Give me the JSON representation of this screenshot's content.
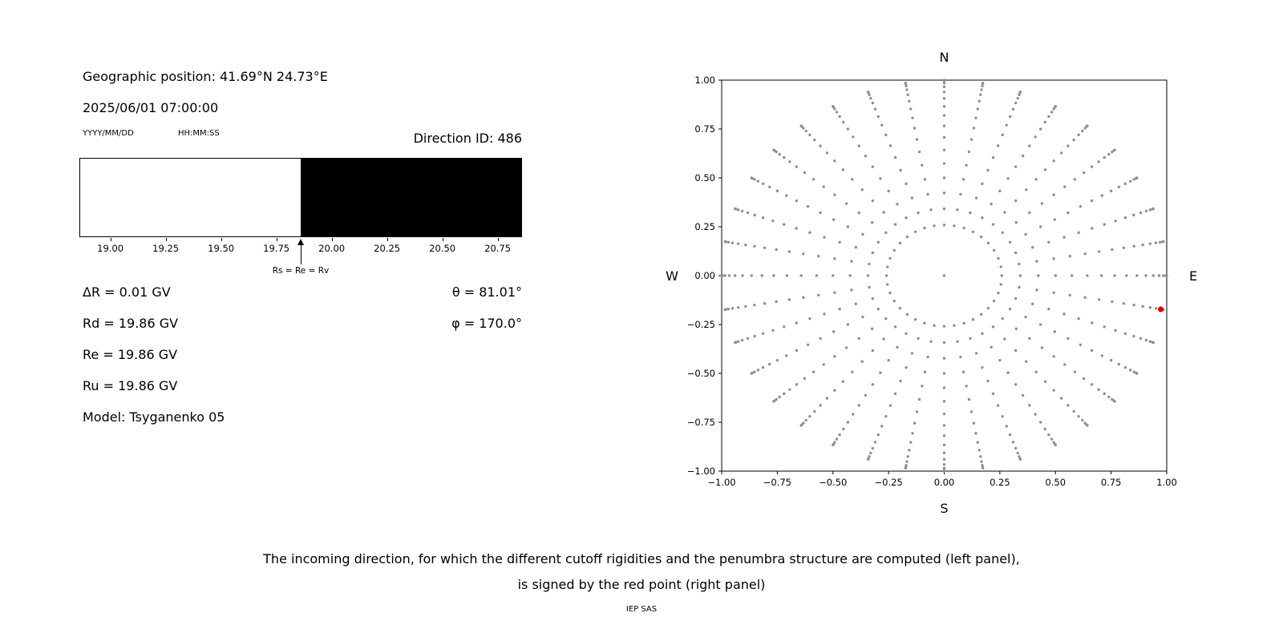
{
  "left_panel": {
    "geo_position": "Geographic position: 41.69°N 24.73°E",
    "datetime": "2025/06/01 07:00:00",
    "date_format": "YYYY/MM/DD",
    "time_format": "HH:MM:SS",
    "direction_id": "Direction ID: 486"
  },
  "rigidities": {
    "delta_r": "ΔR = 0.01 GV",
    "rd": "Rd = 19.86 GV",
    "re": "Re = 19.86 GV",
    "ru": "Ru = 19.86 GV",
    "model": "Model: Tsyganenko 05",
    "theta": "θ = 81.01°",
    "phi": "φ = 170.0°"
  },
  "caption": {
    "line1": "The incoming direction, for which the different cutoff rigidities and the penumbra structure are computed (left panel),",
    "line2": "is signed by the red point (right panel)",
    "credit": "IEP SAS"
  },
  "chart_data": [
    {
      "type": "bar",
      "name": "penumbra-structure",
      "xlabel_unit": "GV",
      "xlim": [
        18.86,
        20.86
      ],
      "x_ticks": [
        19.0,
        19.25,
        19.5,
        19.75,
        20.0,
        20.25,
        20.5,
        20.75
      ],
      "boundary_rigidity": 19.86,
      "allowed_color": "#ffffff",
      "forbidden_color": "#000000",
      "annotation": "Rs = Re = Rv"
    },
    {
      "type": "scatter",
      "name": "incoming-directions-sky-map",
      "xlim": [
        -1,
        1
      ],
      "ylim": [
        -1,
        1
      ],
      "x_ticks": [
        -1.0,
        -0.75,
        -0.5,
        -0.25,
        0.0,
        0.25,
        0.5,
        0.75,
        1.0
      ],
      "y_ticks": [
        1.0,
        0.75,
        0.5,
        0.25,
        0.0,
        -0.25,
        -0.5,
        -0.75,
        -1.0
      ],
      "compass": {
        "top": "N",
        "bottom": "S",
        "left": "W",
        "right": "E"
      },
      "direction_grid": {
        "azimuth_start_deg": 0,
        "azimuth_step_deg": 10,
        "azimuth_count": 36,
        "zenith_deg": [
          0,
          15,
          20,
          25,
          30,
          35,
          40,
          45,
          50,
          55,
          60,
          65,
          70,
          75,
          80,
          85,
          90
        ],
        "radius_rule": "sin(zenith)"
      },
      "point_color": "#8f8f8f",
      "selected_point": {
        "x": 0.973,
        "y": -0.172,
        "color": "#dd0000"
      },
      "grid": false,
      "legend": false
    }
  ]
}
